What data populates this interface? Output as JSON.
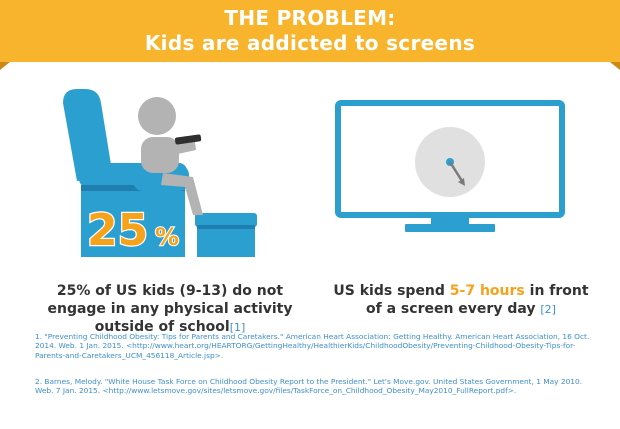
{
  "banner": {
    "title": "THE PROBLEM:",
    "subtitle": "Kids are addicted to screens"
  },
  "left_panel": {
    "percent_badge": "25",
    "percent_sign": "%",
    "stat_text": "25% of US kids (9-13) do not engage in any physical activity outside of school",
    "ref_marker": "[1]"
  },
  "right_panel": {
    "stat_prefix": "US kids spend ",
    "stat_highlight": "5-7 hours",
    "stat_suffix": " in front of a screen every day ",
    "ref_marker": "[2]"
  },
  "references": [
    {
      "text": "1. \"Preventing Childhood Obesity: Tips for Parents and Caretakers.\" American Heart Association: Getting Healthy. American Heart Association, 16 Oct. 2014. Web. 1 Jan. 2015. <http://www.heart.org/HEARTORG/GettingHealthy/HealthierKids/ChildhoodObesity/Preventing-Childhood-Obesity-Tips-for-Parents-and-Caretakers_UCM_456118_Article.jsp>."
    },
    {
      "text": "2. Barnes, Melody. \"White House Task Force on Childhood Obesity Report to the President.\" Let's Move.gov. United States Government, 1 May 2010. Web. 7 Jan. 2015. <http://www.letsmove.gov/sites/letsmove.gov/files/TaskForce_on_Childhood_Obesity_May2010_FullReport.pdf>."
    }
  ],
  "colors": {
    "banner": "#f7b42c",
    "banner_fold": "#c98a17",
    "chair_blue": "#2b9fd0",
    "chair_blue_dark": "#1f7fb0",
    "person_gray": "#b3b3b3",
    "tv_blue": "#2b9fd0",
    "clock_gray": "#e0e0e0",
    "accent_orange": "#f7a21b",
    "ref_blue": "#3d8fcf"
  },
  "icons": [
    "armchair-icon",
    "person-icon",
    "remote-icon",
    "television-icon",
    "clock-icon"
  ]
}
